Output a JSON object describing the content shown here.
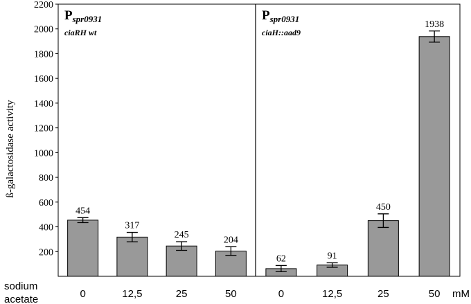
{
  "chart_data": {
    "type": "bar",
    "ylabel": "ß-galactosidase activity",
    "ylim": [
      0,
      2200
    ],
    "yticks": [
      200,
      400,
      600,
      800,
      1000,
      1200,
      1400,
      1600,
      1800,
      2000,
      2200
    ],
    "grid": false,
    "x_caption_line1": "sodium",
    "x_caption_line2": "acetate",
    "x_unit": "mM",
    "panels": [
      {
        "promoter_letter": "P",
        "promoter_subscript": "spr0931",
        "strain": "ciaRH wt",
        "categories": [
          "0",
          "12,5",
          "25",
          "50"
        ],
        "values": [
          454,
          317,
          245,
          204
        ],
        "errors": [
          20,
          38,
          35,
          35
        ],
        "value_labels": [
          "454",
          "317",
          "245",
          "204"
        ]
      },
      {
        "promoter_letter": "P",
        "promoter_subscript": "spr0931",
        "strain": "ciaH::aad9",
        "categories": [
          "0",
          "12,5",
          "25",
          "50"
        ],
        "values": [
          62,
          91,
          450,
          1938
        ],
        "errors": [
          25,
          18,
          55,
          45
        ],
        "value_labels": [
          "62",
          "91",
          "450",
          "1938"
        ]
      }
    ],
    "colors": {
      "bar": "#999999",
      "bar_stroke": "#000000"
    }
  }
}
